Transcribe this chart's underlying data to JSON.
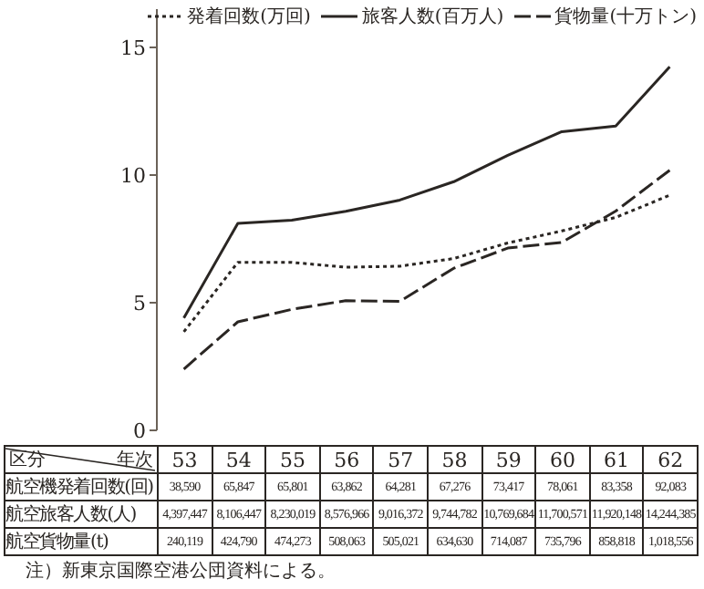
{
  "chart_data": {
    "type": "line",
    "xlabel": "年次",
    "categories": [
      "53",
      "54",
      "55",
      "56",
      "57",
      "58",
      "59",
      "60",
      "61",
      "62"
    ],
    "series": [
      {
        "name": "発着回数(万回)",
        "color": "#2a2623",
        "line_style": "dotted",
        "values": [
          3.86,
          6.58,
          6.58,
          6.39,
          6.43,
          6.73,
          7.34,
          7.81,
          8.34,
          9.21
        ]
      },
      {
        "name": "旅客人数(百万人)",
        "color": "#2a2623",
        "line_style": "solid",
        "values": [
          4.4,
          8.11,
          8.23,
          8.58,
          9.02,
          9.74,
          10.77,
          11.7,
          11.92,
          14.24
        ]
      },
      {
        "name": "貨物量(十万トン)",
        "color": "#2a2623",
        "line_style": "dashed",
        "values": [
          2.4,
          4.25,
          4.74,
          5.08,
          5.05,
          6.35,
          7.14,
          7.36,
          8.59,
          10.19
        ]
      }
    ],
    "ylim": [
      0,
      16.5
    ],
    "yticks": [
      0,
      5,
      10,
      15
    ],
    "marker": "none",
    "legend": "top right",
    "annotations": [
      "区分",
      "航空機発着回数(回)",
      "航空旅客人数(人)",
      "航空貨物量(t)",
      "38,590",
      "65,847",
      "65,801",
      "63,862",
      "64,281",
      "67,276",
      "73,417",
      "78,061",
      "83,358",
      "92,083",
      "4,397,447",
      "8,106,447",
      "8,230,019",
      "8,576,966",
      "9,016,372",
      "9,744,782",
      "10,769,684",
      "11,700,571",
      "11,920,148",
      "14,244,385",
      "240,119",
      "424,790",
      "474,273",
      "508,063",
      "505,021",
      "634,630",
      "714,087",
      "735,796",
      "858,818",
      "1,018,556",
      "注）新東京国際空港公団資料による。"
    ]
  }
}
